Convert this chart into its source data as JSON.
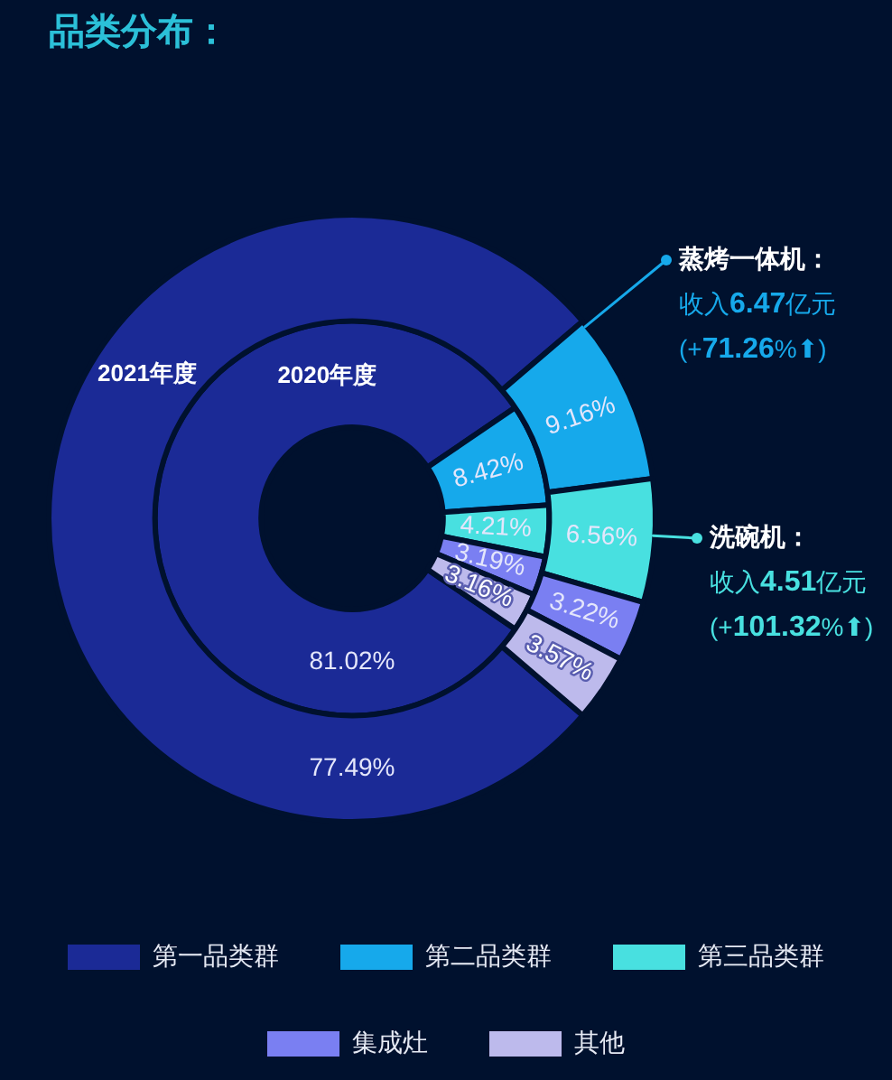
{
  "chart_data": {
    "type": "donut",
    "title": "品类分布：",
    "categories": [
      "第一品类群",
      "第二品类群",
      "第三品类群",
      "集成灶",
      "其他"
    ],
    "colors": [
      "#1b2a96",
      "#16a9eb",
      "#48e0e0",
      "#7a7ff2",
      "#bdbaec"
    ],
    "series": [
      {
        "name": "2021年度",
        "values": [
          77.49,
          9.16,
          6.56,
          3.22,
          3.57
        ],
        "value_labels": [
          "77.49%",
          "9.16%",
          "6.56%",
          "3.22%",
          "3.57%"
        ]
      },
      {
        "name": "2020年度",
        "values": [
          81.02,
          8.42,
          4.21,
          3.19,
          3.16
        ],
        "value_labels": [
          "81.02%",
          "8.42%",
          "4.21%",
          "3.19%",
          "3.16%"
        ]
      }
    ],
    "legend": "bottom",
    "annotations": [
      "蒸烤一体机：",
      "收入6.47亿元",
      "(+71.26%⬆)",
      "洗碗机：",
      "收入4.51亿元",
      "(+101.32%⬆)"
    ]
  }
}
